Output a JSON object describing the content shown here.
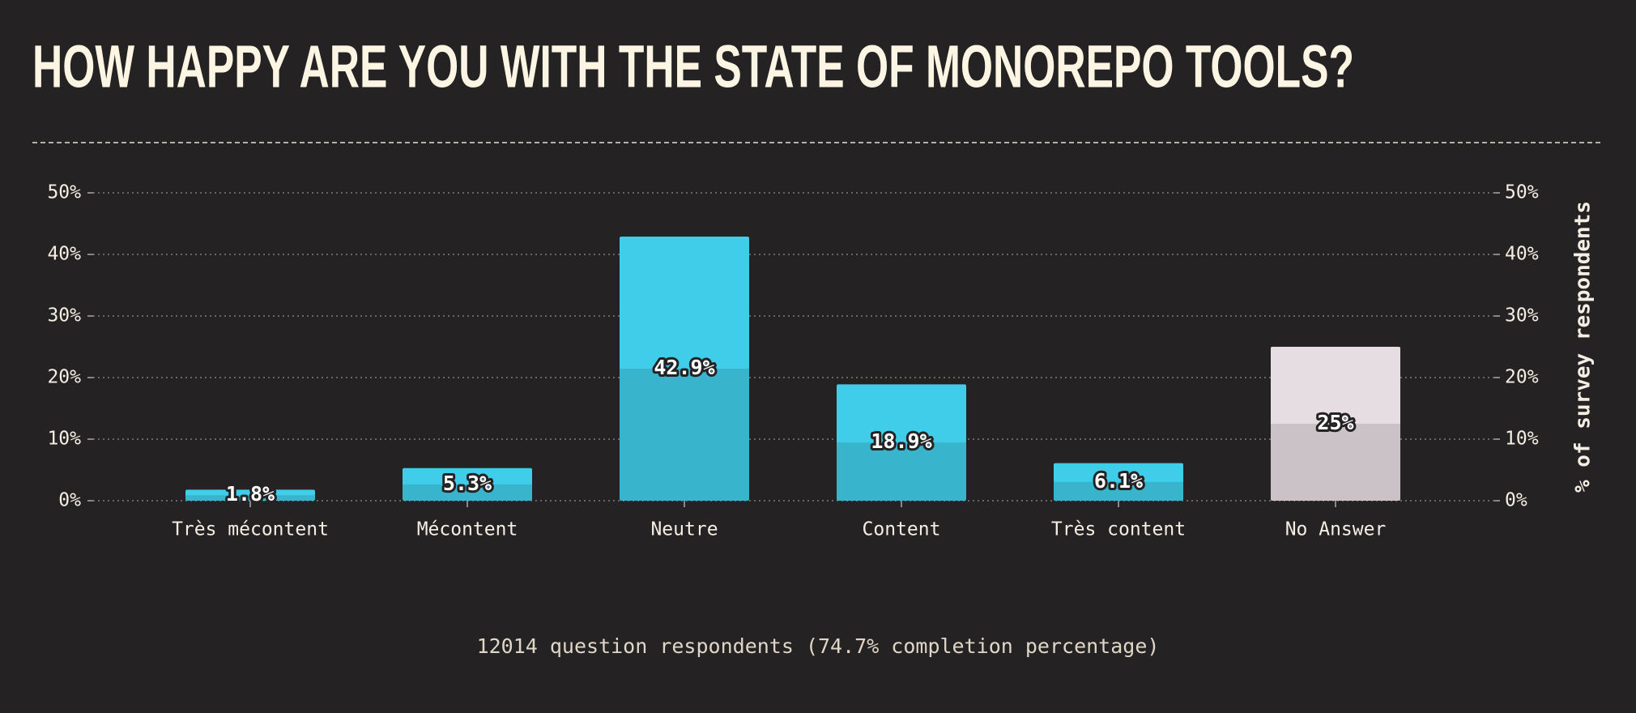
{
  "chart_data": {
    "type": "bar",
    "title": "HOW HAPPY ARE YOU WITH THE STATE OF MONOREPO TOOLS?",
    "categories": [
      "Très mécontent",
      "Mécontent",
      "Neutre",
      "Content",
      "Très content",
      "No Answer"
    ],
    "values": [
      1.8,
      5.3,
      42.9,
      18.9,
      6.1,
      25
    ],
    "value_labels": [
      "1.8%",
      "5.3%",
      "42.9%",
      "18.9%",
      "6.1%",
      "25%"
    ],
    "colors": [
      "#40cdea",
      "#40cdea",
      "#40cdea",
      "#40cdea",
      "#40cdea",
      "#e6dde2"
    ],
    "ylim": [
      0,
      50
    ],
    "yticks": [
      {
        "value": 0,
        "label": "0%"
      },
      {
        "value": 10,
        "label": "10%"
      },
      {
        "value": 20,
        "label": "20%"
      },
      {
        "value": 30,
        "label": "30%"
      },
      {
        "value": 40,
        "label": "40%"
      },
      {
        "value": 50,
        "label": "50%"
      }
    ],
    "y2lim": [
      0,
      50
    ],
    "y2ticks": [
      {
        "value": 0,
        "label": "0%"
      },
      {
        "value": 10,
        "label": "10%"
      },
      {
        "value": 20,
        "label": "20%"
      },
      {
        "value": 30,
        "label": "30%"
      },
      {
        "value": 40,
        "label": "40%"
      },
      {
        "value": 50,
        "label": "50%"
      }
    ],
    "y2label": "% of survey respondents",
    "grid": true,
    "note": "12014 question respondents (74.7% completion percentage)"
  }
}
